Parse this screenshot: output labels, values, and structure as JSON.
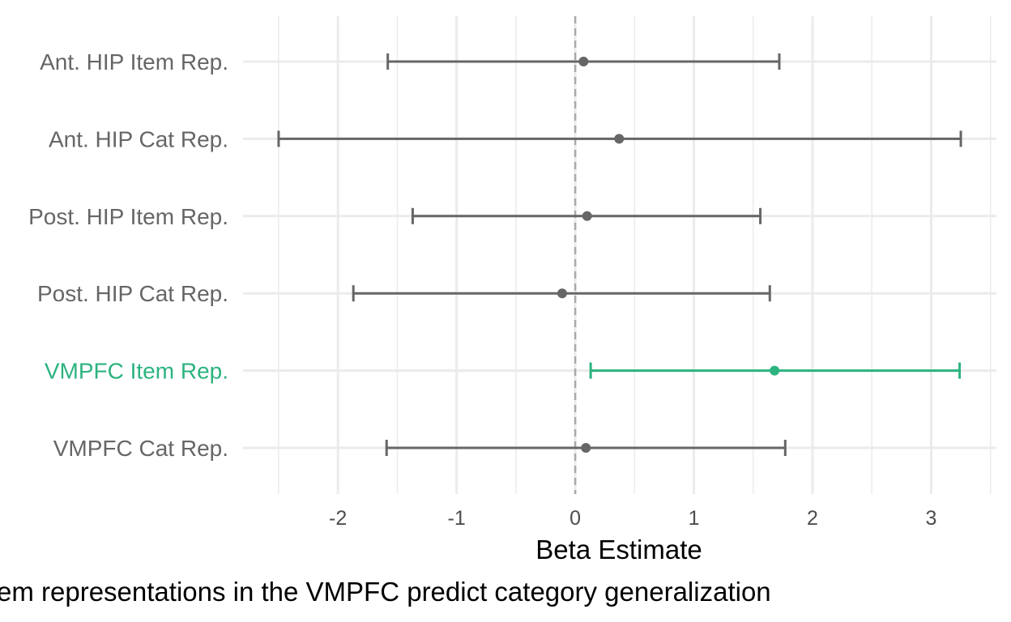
{
  "chart_data": {
    "type": "scatter",
    "subtype": "forest-plot",
    "xlabel": "Beta Estimate",
    "caption": "em representations in the VMPFC predict category generalization",
    "xlim": [
      -2.8,
      3.55
    ],
    "xticks": [
      -2,
      -1,
      0,
      1,
      2,
      3
    ],
    "reference_line_x": 0,
    "grid": true,
    "colors": {
      "default": "#666666",
      "highlight": "#2cb37f",
      "grid": "#ebebeb",
      "reference": "#aaaaaa"
    },
    "rows": [
      {
        "label": "Ant. HIP Item Rep.",
        "estimate": 0.07,
        "lower": -1.58,
        "upper": 1.72,
        "highlight": false
      },
      {
        "label": "Ant. HIP Cat Rep.",
        "estimate": 0.37,
        "lower": -2.5,
        "upper": 3.25,
        "highlight": false
      },
      {
        "label": "Post. HIP Item Rep.",
        "estimate": 0.1,
        "lower": -1.37,
        "upper": 1.56,
        "highlight": false
      },
      {
        "label": "Post. HIP Cat Rep.",
        "estimate": -0.11,
        "lower": -1.87,
        "upper": 1.64,
        "highlight": false
      },
      {
        "label": "VMPFC Item Rep.",
        "estimate": 1.68,
        "lower": 0.13,
        "upper": 3.24,
        "highlight": true
      },
      {
        "label": "VMPFC Cat Rep.",
        "estimate": 0.09,
        "lower": -1.59,
        "upper": 1.77,
        "highlight": false
      }
    ]
  }
}
